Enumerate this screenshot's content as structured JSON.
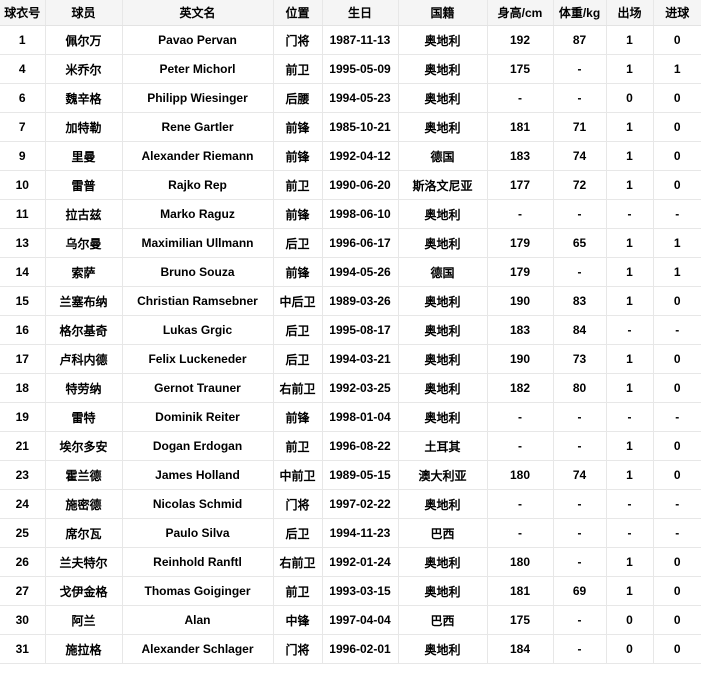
{
  "table": {
    "headers": [
      "球衣号",
      "球员",
      "英文名",
      "位置",
      "生日",
      "国籍",
      "身高/cm",
      "体重/kg",
      "出场",
      "进球"
    ],
    "rows": [
      [
        "1",
        "佩尔万",
        "Pavao Pervan",
        "门将",
        "1987-11-13",
        "奥地利",
        "192",
        "87",
        "1",
        "0"
      ],
      [
        "4",
        "米乔尔",
        "Peter Michorl",
        "前卫",
        "1995-05-09",
        "奥地利",
        "175",
        "-",
        "1",
        "1"
      ],
      [
        "6",
        "魏辛格",
        "Philipp Wiesinger",
        "后腰",
        "1994-05-23",
        "奥地利",
        "-",
        "-",
        "0",
        "0"
      ],
      [
        "7",
        "加特勒",
        "Rene Gartler",
        "前锋",
        "1985-10-21",
        "奥地利",
        "181",
        "71",
        "1",
        "0"
      ],
      [
        "9",
        "里曼",
        "Alexander Riemann",
        "前锋",
        "1992-04-12",
        "德国",
        "183",
        "74",
        "1",
        "0"
      ],
      [
        "10",
        "雷普",
        "Rajko Rep",
        "前卫",
        "1990-06-20",
        "斯洛文尼亚",
        "177",
        "72",
        "1",
        "0"
      ],
      [
        "11",
        "拉古兹",
        "Marko Raguz",
        "前锋",
        "1998-06-10",
        "奥地利",
        "-",
        "-",
        "-",
        "-"
      ],
      [
        "13",
        "乌尔曼",
        "Maximilian Ullmann",
        "后卫",
        "1996-06-17",
        "奥地利",
        "179",
        "65",
        "1",
        "1"
      ],
      [
        "14",
        "索萨",
        "Bruno Souza",
        "前锋",
        "1994-05-26",
        "德国",
        "179",
        "-",
        "1",
        "1"
      ],
      [
        "15",
        "兰塞布纳",
        "Christian Ramsebner",
        "中后卫",
        "1989-03-26",
        "奥地利",
        "190",
        "83",
        "1",
        "0"
      ],
      [
        "16",
        "格尔基奇",
        "Lukas Grgic",
        "后卫",
        "1995-08-17",
        "奥地利",
        "183",
        "84",
        "-",
        "-"
      ],
      [
        "17",
        "卢科内德",
        "Felix Luckeneder",
        "后卫",
        "1994-03-21",
        "奥地利",
        "190",
        "73",
        "1",
        "0"
      ],
      [
        "18",
        "特劳纳",
        "Gernot Trauner",
        "右前卫",
        "1992-03-25",
        "奥地利",
        "182",
        "80",
        "1",
        "0"
      ],
      [
        "19",
        "雷特",
        "Dominik Reiter",
        "前锋",
        "1998-01-04",
        "奥地利",
        "-",
        "-",
        "-",
        "-"
      ],
      [
        "21",
        "埃尔多安",
        "Dogan Erdogan",
        "前卫",
        "1996-08-22",
        "土耳其",
        "-",
        "-",
        "1",
        "0"
      ],
      [
        "23",
        "霍兰德",
        "James Holland",
        "中前卫",
        "1989-05-15",
        "澳大利亚",
        "180",
        "74",
        "1",
        "0"
      ],
      [
        "24",
        "施密德",
        "Nicolas Schmid",
        "门将",
        "1997-02-22",
        "奥地利",
        "-",
        "-",
        "-",
        "-"
      ],
      [
        "25",
        "席尔瓦",
        "Paulo Silva",
        "后卫",
        "1994-11-23",
        "巴西",
        "-",
        "-",
        "-",
        "-"
      ],
      [
        "26",
        "兰夫特尔",
        "Reinhold Ranftl",
        "右前卫",
        "1992-01-24",
        "奥地利",
        "180",
        "-",
        "1",
        "0"
      ],
      [
        "27",
        "戈伊金格",
        "Thomas Goiginger",
        "前卫",
        "1993-03-15",
        "奥地利",
        "181",
        "69",
        "1",
        "0"
      ],
      [
        "30",
        "阿兰",
        "Alan",
        "中锋",
        "1997-04-04",
        "巴西",
        "175",
        "-",
        "0",
        "0"
      ],
      [
        "31",
        "施拉格",
        "Alexander Schlager",
        "门将",
        "1996-02-01",
        "奥地利",
        "184",
        "-",
        "0",
        "0"
      ]
    ]
  }
}
